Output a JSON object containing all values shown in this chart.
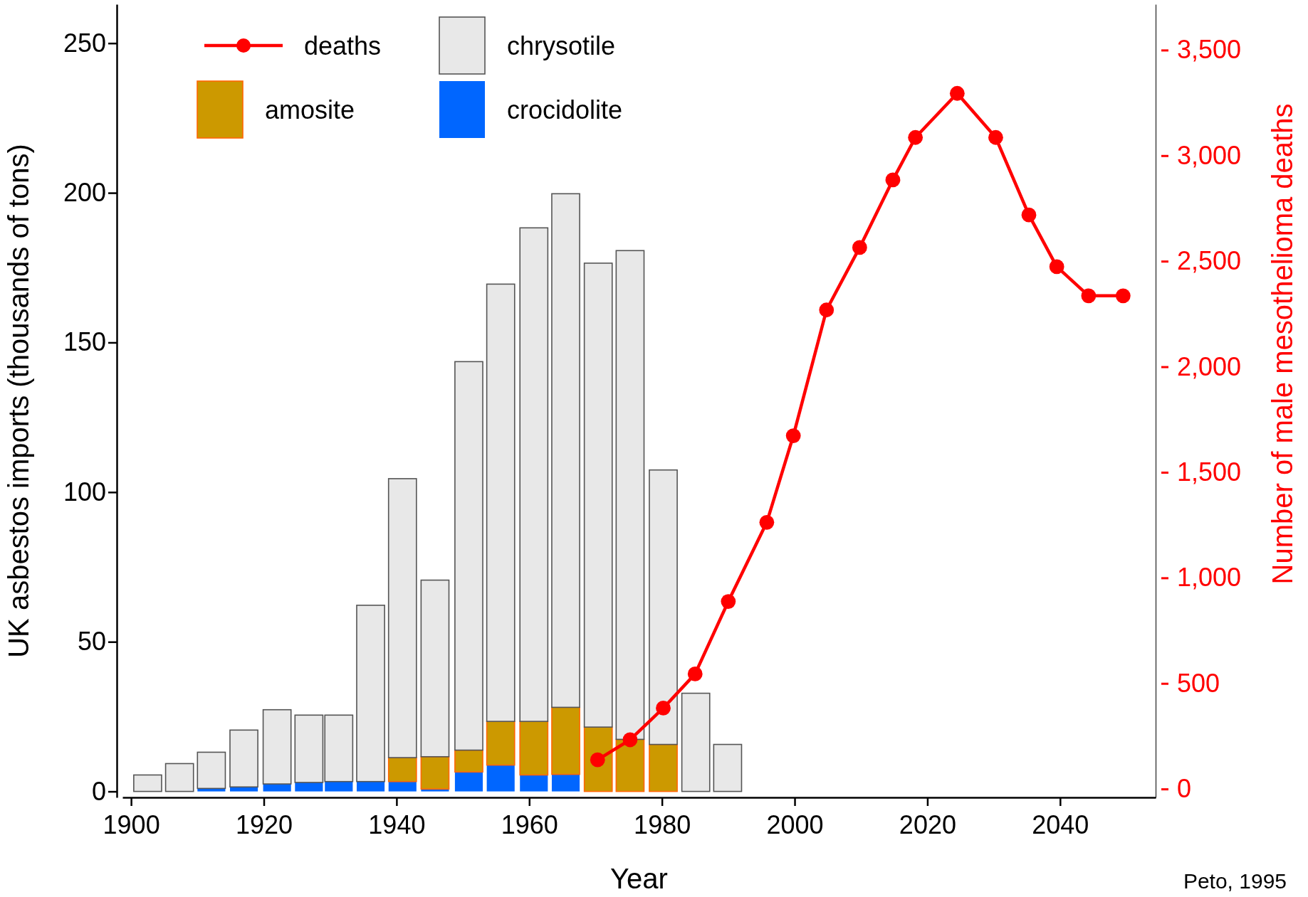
{
  "chart_data": {
    "type": "bar",
    "stacked": true,
    "xlabel": "Year",
    "ylabel": "UK asbestos imports (thousands of tons)",
    "y2label": "Number of male mesothelioma deaths",
    "x": [
      1902.5,
      1907.3,
      1912.1,
      1917,
      1922,
      1926.8,
      1931.3,
      1936.1,
      1940.9,
      1945.8,
      1950.9,
      1955.7,
      1960.7,
      1965.5,
      1970.4,
      1975.2,
      1980.2,
      1985.1,
      1989.9
    ],
    "series": [
      {
        "name": "crocidolite",
        "color": "#0066ff",
        "values": [
          0,
          0,
          1,
          1.5,
          2.5,
          3,
          3.3,
          3.3,
          3.3,
          0.8,
          6.5,
          8.8,
          5.5,
          5.7,
          0,
          0,
          0,
          0,
          0
        ]
      },
      {
        "name": "amosite",
        "color": "#cc9900",
        "values": [
          0,
          0,
          0,
          0,
          0,
          0,
          0,
          0,
          8,
          10.8,
          7.3,
          14.6,
          17.9,
          22.4,
          21.5,
          17.4,
          15.7,
          0,
          0
        ]
      },
      {
        "name": "chrysotile",
        "color": "#e8e8e8",
        "values": [
          5.5,
          9.3,
          12.1,
          19,
          24.8,
          22.5,
          22.2,
          58.9,
          93.2,
          59,
          129.8,
          146.1,
          164.9,
          171.6,
          155,
          163.3,
          91.7,
          32.8,
          15.7
        ]
      },
      {
        "name": "deaths",
        "type": "line",
        "axis": "y2",
        "color": "#ff0000",
        "x": [
          1970.3,
          1975.2,
          1980.2,
          1985,
          1990,
          1995.8,
          1999.8,
          2004.8,
          2009.8,
          2014.8,
          2018.2,
          2024.5,
          2030.3,
          2035.3,
          2039.5,
          2044.3,
          2049.5
        ],
        "values": [
          138,
          233,
          383,
          545,
          888,
          1263,
          1673,
          2269,
          2565,
          2885,
          3086,
          3295,
          3086,
          2719,
          2474,
          2336,
          2336
        ]
      }
    ],
    "xlim": [
      1898.7,
      2054.4
    ],
    "xticks": [
      1900,
      1920,
      1940,
      1960,
      1980,
      2000,
      2020,
      2040
    ],
    "ylim": [
      -2,
      263
    ],
    "yticks": [
      0,
      50,
      100,
      150,
      200,
      250
    ],
    "y2lim": [
      -40,
      3717
    ],
    "y2ticks": [
      {
        "value": 0,
        "label": "0"
      },
      {
        "value": 500,
        "label": "500"
      },
      {
        "value": 1000,
        "label": "1,000"
      },
      {
        "value": 1500,
        "label": "1,500"
      },
      {
        "value": 2000,
        "label": "2,000"
      },
      {
        "value": 2500,
        "label": "2,500"
      },
      {
        "value": 3000,
        "label": "3,000"
      },
      {
        "value": 3500,
        "label": "3,500"
      }
    ],
    "marker": "circle",
    "legend": "top left",
    "grid": false,
    "annotations": [
      "Peto, 1995"
    ]
  }
}
